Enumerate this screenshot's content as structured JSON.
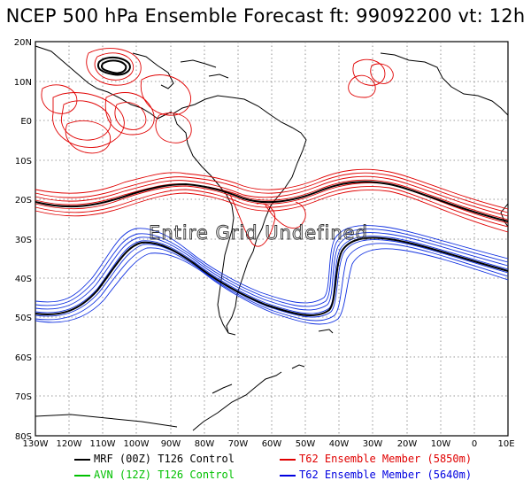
{
  "title": "NCEP 500 hPa Ensemble Forecast   ft: 99092200 vt: 12h",
  "overlay_text": "Entire Grid Undefined",
  "lat_labels": [
    "20N",
    "10N",
    "E0",
    "10S",
    "20S",
    "30S",
    "40S",
    "50S",
    "60S",
    "70S",
    "80S"
  ],
  "lon_labels": [
    "130W",
    "120W",
    "110W",
    "100W",
    "90W",
    "80W",
    "70W",
    "60W",
    "50W",
    "40W",
    "30W",
    "20W",
    "10W",
    "0",
    "10E"
  ],
  "legend": [
    {
      "label": "MRF (00Z) T126 Control",
      "color": "#000000"
    },
    {
      "label": "T62 Ensemble Member (5850m)",
      "color": "#e00000"
    },
    {
      "label": "AVN (12Z) T126 Control",
      "color": "#00c000"
    },
    {
      "label": "T62 Ensemble Member (5640m)",
      "color": "#0000e0"
    }
  ],
  "colors": {
    "member_5850": "#e00000",
    "member_5640": "#1030e0",
    "control": "#000000",
    "grid": "#888888",
    "coast": "#000000"
  }
}
